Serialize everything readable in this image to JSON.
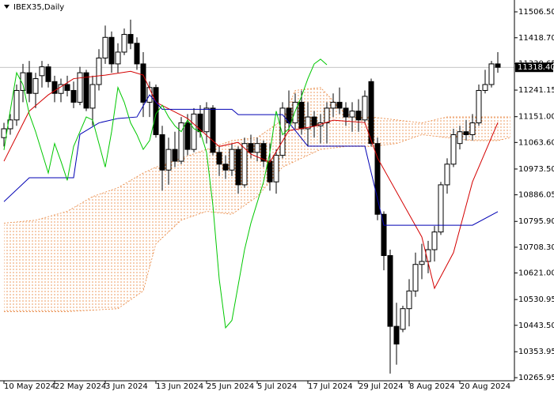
{
  "chart_data": {
    "type": "candlestick",
    "title": "IBEX35,Daily",
    "ylim": [
      10255.4,
      11546.7
    ],
    "xlim": [
      -0.625,
      80.625
    ],
    "yticks": [
      {
        "value": 11506.5,
        "label": "11506.50"
      },
      {
        "value": 11418.7,
        "label": "11418.70"
      },
      {
        "value": 11330.65,
        "label": "11330.65"
      },
      {
        "value": 11241.15,
        "label": "11241.15"
      },
      {
        "value": 11151,
        "label": "11151.00"
      },
      {
        "value": 11063.6,
        "label": "11063.60"
      },
      {
        "value": 10973.5,
        "label": "10973.50"
      },
      {
        "value": 10886.05,
        "label": "10886.05"
      },
      {
        "value": 10795.9,
        "label": "10795.90"
      },
      {
        "value": 10708.3,
        "label": "10708.30"
      },
      {
        "value": 10621,
        "label": "10621.00"
      },
      {
        "value": 10530.95,
        "label": "10530.95"
      },
      {
        "value": 10443.5,
        "label": "10443.50"
      },
      {
        "value": 10353.95,
        "label": "10353.95"
      },
      {
        "value": 10265.95,
        "label": "10265.95"
      }
    ],
    "xticks": [
      {
        "value": 0,
        "label": "10 May 2024"
      },
      {
        "value": 8,
        "label": "22 May 2024"
      },
      {
        "value": 16,
        "label": "3 Jun 2024"
      },
      {
        "value": 24,
        "label": "13 Jun 2024"
      },
      {
        "value": 32,
        "label": "25 Jun 2024"
      },
      {
        "value": 40,
        "label": "5 Jul 2024"
      },
      {
        "value": 48,
        "label": "17 Jul 2024"
      },
      {
        "value": 56,
        "label": "29 Jul 2024"
      },
      {
        "value": 64,
        "label": "8 Aug 2024"
      },
      {
        "value": 72,
        "label": "20 Aug 2024"
      }
    ],
    "current_price": {
      "value": 11318.4,
      "label": "11318.40"
    },
    "up_color": "#ffffff",
    "down_color": "#000000",
    "open": [
      11080,
      11110,
      11140,
      11240,
      11300,
      11230,
      11290,
      11320,
      11270,
      11230,
      11260,
      11240,
      11200,
      11300,
      11180,
      11260,
      11350,
      11420,
      11330,
      11370,
      11430,
      11400,
      11330,
      11200,
      11250,
      11090,
      10970,
      11040,
      11000,
      11130,
      11040,
      11160,
      11100,
      11180,
      11030,
      10990,
      10970,
      11040,
      10920,
      11060,
      11030,
      11060,
      11000,
      10930,
      11020,
      11180,
      11130,
      11200,
      11110,
      11150,
      11120,
      11130,
      11180,
      11200,
      11180,
      11150,
      11170,
      11140,
      11270,
      11060,
      10820,
      10680,
      10440,
      10430,
      10500,
      10560,
      10650,
      10660,
      10700,
      10760,
      10920,
      10990,
      11060,
      11100,
      11090,
      11130,
      11240,
      11260,
      11330
    ],
    "high": [
      11130,
      11160,
      11260,
      11330,
      11340,
      11300,
      11340,
      11330,
      11290,
      11280,
      11290,
      11270,
      11320,
      11310,
      11290,
      11380,
      11460,
      11440,
      11400,
      11450,
      11480,
      11420,
      11370,
      11270,
      11260,
      11120,
      11080,
      11100,
      11150,
      11160,
      11180,
      11190,
      11200,
      11190,
      11050,
      11020,
      11060,
      11050,
      11080,
      11090,
      11080,
      11070,
      11060,
      11040,
      11200,
      11240,
      11230,
      11240,
      11200,
      11170,
      11160,
      11200,
      11230,
      11250,
      11200,
      11200,
      11210,
      11240,
      11280,
      11080,
      10830,
      10700,
      10520,
      10510,
      10600,
      10690,
      10720,
      10730,
      10780,
      10930,
      11010,
      11110,
      11120,
      11140,
      11160,
      11260,
      11310,
      11340,
      11370
    ],
    "low": [
      11050,
      11090,
      11120,
      11200,
      11200,
      11180,
      11250,
      11250,
      11200,
      11200,
      11220,
      11180,
      11190,
      11170,
      11120,
      11240,
      11330,
      11300,
      11300,
      11360,
      11380,
      11310,
      11150,
      11150,
      11080,
      10900,
      10920,
      10980,
      10990,
      11020,
      11030,
      11080,
      11060,
      11020,
      10950,
      10940,
      10950,
      10890,
      10910,
      11010,
      11000,
      10980,
      10900,
      10890,
      11010,
      11100,
      11110,
      11090,
      11050,
      11080,
      11060,
      11060,
      11150,
      11160,
      11120,
      11100,
      11100,
      11130,
      11050,
      10800,
      10630,
      10280,
      10310,
      10420,
      10440,
      10540,
      10600,
      10620,
      10660,
      10750,
      10890,
      10980,
      11040,
      11070,
      11070,
      11120,
      11230,
      11250,
      11300
    ],
    "close": [
      11110,
      11140,
      11240,
      11300,
      11230,
      11280,
      11320,
      11270,
      11230,
      11260,
      11240,
      11200,
      11300,
      11180,
      11260,
      11350,
      11420,
      11330,
      11370,
      11430,
      11400,
      11330,
      11200,
      11250,
      11090,
      10970,
      11040,
      11000,
      11130,
      11040,
      11160,
      11100,
      11180,
      11030,
      10990,
      10970,
      11040,
      10920,
      11060,
      11030,
      11060,
      11000,
      10930,
      11020,
      11180,
      11130,
      11200,
      11110,
      11150,
      11120,
      11130,
      11180,
      11200,
      11180,
      11150,
      11170,
      11140,
      11220,
      11060,
      10820,
      10680,
      10440,
      10380,
      10500,
      10560,
      10650,
      10660,
      10700,
      10760,
      10920,
      10990,
      11090,
      11100,
      11090,
      11130,
      11240,
      11260,
      11330,
      11318.4
    ],
    "lines": [
      {
        "color": "#d40000",
        "x": [
          0,
          4,
          7,
          11,
          16,
          20,
          22,
          24,
          29,
          34,
          37,
          39,
          42,
          45,
          49,
          52,
          57,
          59,
          66,
          68,
          71,
          74,
          78
        ],
        "values": [
          11000,
          11170,
          11225,
          11280,
          11292,
          11305,
          11292,
          11200,
          11145,
          11050,
          11064,
          11024,
          10997,
          11104,
          11118,
          11139,
          11131,
          11011,
          10743,
          10569,
          10690,
          10930,
          11131
        ]
      },
      {
        "color": "#0000b4",
        "x": [
          0,
          4,
          11,
          12,
          15,
          18,
          21,
          23,
          25,
          36,
          37,
          44,
          48,
          57,
          60,
          74,
          78
        ],
        "values": [
          10863,
          10944,
          10944,
          11091,
          11130,
          11145,
          11150,
          11225,
          11176,
          11176,
          11158,
          11158,
          11051,
          11051,
          10783,
          10783,
          10829
        ]
      },
      {
        "color": "#00c800",
        "x": [
          0,
          1,
          2,
          3,
          4,
          5,
          6,
          7,
          8,
          9,
          10,
          11,
          12,
          13,
          14,
          15,
          16,
          17,
          18,
          19,
          20,
          21,
          22,
          23,
          24,
          25,
          26,
          27,
          28,
          29,
          30,
          31,
          32,
          33,
          34,
          35,
          36,
          37,
          38,
          39,
          40,
          41,
          42,
          43,
          44,
          45,
          46,
          47,
          48,
          49,
          50,
          51
        ],
        "values": [
          11038,
          11172,
          11300,
          11260,
          11160,
          11100,
          11030,
          10960,
          11060,
          11000,
          10935,
          11050,
          11100,
          11150,
          11140,
          11060,
          10980,
          11100,
          11250,
          11200,
          11130,
          11090,
          11040,
          11070,
          11160,
          11190,
          11150,
          11120,
          11100,
          11140,
          11110,
          11100,
          11030,
          10850,
          10600,
          10435,
          10460,
          10580,
          10700,
          10790,
          10860,
          10930,
          11030,
          11170,
          11090,
          11110,
          11170,
          11220,
          11280,
          11330,
          11346,
          11327
        ]
      }
    ],
    "cloud": {
      "color": "#e8843c",
      "x": [
        0,
        5,
        10,
        14,
        18,
        22,
        24,
        28,
        32,
        36,
        40,
        44,
        46,
        50,
        54,
        58,
        62,
        66,
        70,
        74,
        78,
        80
      ],
      "upper": [
        10790,
        10800,
        10830,
        10880,
        10910,
        10960,
        10980,
        11010,
        11040,
        11070,
        11080,
        11140,
        11240,
        11250,
        11160,
        11150,
        11140,
        11130,
        11150,
        11150,
        11150,
        11150
      ],
      "lower": [
        10490,
        10490,
        10490,
        10495,
        10500,
        10560,
        10720,
        10800,
        10830,
        10820,
        10880,
        10980,
        11000,
        11040,
        11050,
        11050,
        11060,
        11090,
        11080,
        11070,
        11070,
        11080
      ]
    }
  }
}
